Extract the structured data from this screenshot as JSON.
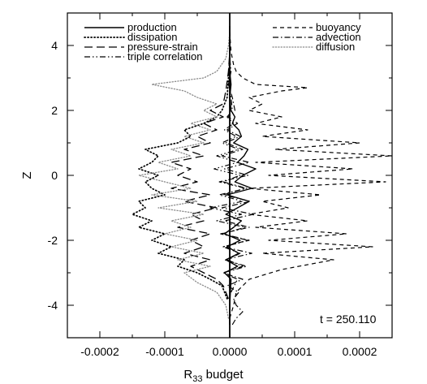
{
  "chart_data": {
    "type": "line",
    "title": "",
    "xlabel": "R",
    "xlabel_sub": "33",
    "xlabel_tail": " budget",
    "ylabel": "Z",
    "xlim": [
      -0.00025,
      0.00025
    ],
    "ylim": [
      -5,
      5
    ],
    "x_ticks": [
      {
        "value": -0.0002,
        "label": "-0.0002"
      },
      {
        "value": -0.0001,
        "label": "-0.0001"
      },
      {
        "value": 0.0,
        "label": "0.0000"
      },
      {
        "value": 0.0001,
        "label": "0.0001"
      },
      {
        "value": 0.0002,
        "label": "0.0002"
      }
    ],
    "y_ticks": [
      {
        "value": -4,
        "label": "-4"
      },
      {
        "value": -2,
        "label": "-2"
      },
      {
        "value": 0,
        "label": "0"
      },
      {
        "value": 2,
        "label": "2"
      },
      {
        "value": 4,
        "label": "4"
      }
    ],
    "grid": false,
    "legend_position": "top",
    "annotation": "t = 250.110",
    "legend_left": [
      {
        "name": "production",
        "dash": "solid"
      },
      {
        "name": "dissipation",
        "dash": "dotted"
      },
      {
        "name": "pressure-strain",
        "dash": "longdash"
      },
      {
        "name": "triple correlation",
        "dash": "dashdotdot"
      }
    ],
    "legend_right": [
      {
        "name": "buoyancy",
        "dash": "dashed"
      },
      {
        "name": "advection",
        "dash": "dashdot"
      },
      {
        "name": "diffusion",
        "dash": "lightdotted"
      }
    ],
    "series": [
      {
        "name": "production",
        "dash": "solid",
        "z": [
          -4.6,
          -4.0,
          -3.2,
          -3.0,
          -2.8,
          -2.6,
          -2.4,
          -2.2,
          -2.0,
          -1.8,
          -1.6,
          -1.4,
          -1.2,
          -1.0,
          -0.8,
          -0.6,
          -0.4,
          -0.2,
          0.0,
          0.2,
          0.4,
          0.6,
          0.8,
          1.0,
          1.2,
          1.4,
          1.6,
          1.8,
          2.0,
          2.4,
          2.8,
          3.2,
          3.6,
          4.0,
          4.6
        ],
        "x": [
          0.0,
          0.0,
          2e-06,
          -8e-06,
          1.2e-05,
          -6e-06,
          1.4e-05,
          -4e-06,
          1.6e-05,
          -8e-06,
          6e-06,
          1.8e-05,
          -6e-06,
          1.2e-05,
          3e-05,
          -4e-06,
          3.4e-05,
          8e-06,
          2e-05,
          4e-05,
          1.2e-05,
          2.2e-05,
          2.8e-05,
          6e-06,
          1.8e-05,
          1.4e-05,
          4e-06,
          8e-06,
          2e-06,
          0.0,
          2e-06,
          0.0,
          0.0,
          0.0,
          0.0
        ]
      },
      {
        "name": "dissipation",
        "dash": "dotted",
        "z": [
          -3.8,
          -3.4,
          -3.2,
          -3.0,
          -2.8,
          -2.6,
          -2.4,
          -2.2,
          -2.0,
          -1.8,
          -1.6,
          -1.4,
          -1.2,
          -1.0,
          -0.8,
          -0.6,
          -0.4,
          -0.2,
          0.0,
          0.2,
          0.4,
          0.6,
          0.8,
          1.0,
          1.2,
          1.4,
          1.6,
          1.8,
          2.0,
          2.4,
          3.0,
          3.6
        ],
        "x": [
          -4e-06,
          -1.2e-05,
          -3e-05,
          -5e-05,
          -8e-05,
          -7e-05,
          -0.00011,
          -9e-05,
          -0.00012,
          -0.0001,
          -0.00014,
          -0.00012,
          -0.00015,
          -0.00013,
          -0.00014,
          -0.0001,
          -0.00012,
          -0.00013,
          -0.00011,
          -0.00014,
          -0.00012,
          -0.00011,
          -0.00013,
          -8e-05,
          -6e-05,
          -7e-05,
          -4e-05,
          -2e-05,
          -1.2e-05,
          -4e-06,
          -2e-06,
          0.0
        ]
      },
      {
        "name": "pressure-strain",
        "dash": "longdash",
        "z": [
          -3.8,
          -3.4,
          -3.2,
          -3.0,
          -2.8,
          -2.6,
          -2.4,
          -2.2,
          -2.0,
          -1.8,
          -1.6,
          -1.4,
          -1.2,
          -1.0,
          -0.8,
          -0.6,
          -0.4,
          -0.2,
          0.0,
          0.2,
          0.4,
          0.6,
          0.8,
          1.0,
          1.2,
          1.4,
          1.6,
          1.8,
          2.0,
          2.2,
          2.6,
          3.2,
          3.8
        ],
        "x": [
          -2e-06,
          -1e-05,
          -2e-05,
          -4e-05,
          -6e-05,
          -3e-05,
          -7e-05,
          -4e-05,
          -6e-05,
          -3e-05,
          -8e-05,
          -4e-05,
          -6e-05,
          -2e-05,
          -7e-05,
          -3e-05,
          -9e-05,
          -5e-05,
          -8e-05,
          -6e-05,
          -9e-05,
          -4e-05,
          -7e-05,
          -3e-05,
          -5e-05,
          -2e-05,
          -4e-05,
          -1e-05,
          -3e-05,
          -1e-05,
          -6e-06,
          -2e-06,
          0.0
        ]
      },
      {
        "name": "triple correlation",
        "dash": "dashdotdot",
        "z": [
          -3.6,
          -3.2,
          -3.0,
          -2.8,
          -2.6,
          -2.4,
          -2.2,
          -2.0,
          -1.8,
          -1.6,
          -1.4,
          -1.2,
          -1.0,
          -0.8,
          -0.6,
          -0.4,
          -0.2,
          0.0,
          0.2,
          0.4,
          0.6,
          0.8,
          1.0,
          1.2,
          1.4,
          1.6,
          1.8,
          2.0,
          2.4,
          3.0,
          3.6
        ],
        "x": [
          2e-06,
          1.2e-05,
          -1e-05,
          2e-05,
          -4e-06,
          1.6e-05,
          -1e-05,
          3e-05,
          -1.2e-05,
          2.4e-05,
          -2e-05,
          1.8e-05,
          -3e-05,
          2e-05,
          -1.6e-05,
          2.6e-05,
          -1e-05,
          1.6e-05,
          -2.4e-05,
          1.2e-05,
          -2e-05,
          1.4e-05,
          -1.2e-05,
          1e-05,
          -8e-06,
          6e-06,
          -4e-06,
          4e-06,
          2e-06,
          -2e-06,
          0.0
        ]
      },
      {
        "name": "buoyancy",
        "dash": "dashed",
        "z": [
          -4.4,
          -4.0,
          -3.6,
          -3.2,
          -2.9,
          -2.6,
          -2.4,
          -2.2,
          -2.0,
          -1.8,
          -1.6,
          -1.4,
          -1.2,
          -1.0,
          -0.8,
          -0.6,
          -0.4,
          -0.2,
          0.0,
          0.2,
          0.4,
          0.6,
          0.8,
          1.0,
          1.2,
          1.4,
          1.6,
          1.8,
          2.0,
          2.2,
          2.4,
          2.6,
          2.7,
          2.8,
          3.0,
          3.2,
          3.4,
          3.8,
          4.4
        ],
        "x": [
          0.0,
          6e-06,
          1e-05,
          3e-05,
          8e-05,
          0.00016,
          5e-05,
          0.00022,
          6e-05,
          0.00018,
          4e-05,
          0.00012,
          3e-05,
          9e-05,
          5e-05,
          0.00014,
          3e-05,
          0.00024,
          6e-05,
          0.00019,
          4e-05,
          0.00025,
          7e-05,
          0.0002,
          5e-05,
          0.00012,
          4e-05,
          8e-05,
          3e-05,
          5e-05,
          3e-05,
          8e-05,
          0.00012,
          4e-05,
          2e-05,
          1e-05,
          6e-06,
          2e-06,
          0.0
        ]
      },
      {
        "name": "advection",
        "dash": "dashdot",
        "z": [
          -4.6,
          -4.4,
          -4.2,
          -4.0,
          -3.8,
          -3.6,
          -3.4,
          -3.2,
          -3.0,
          -2.8,
          -2.6,
          -2.4,
          -2.2,
          -2.0,
          -1.8,
          -1.6,
          -1.4,
          -1.2,
          -1.0,
          -0.8,
          -0.6,
          -0.4,
          -0.2,
          0.0,
          0.2,
          0.4,
          0.6,
          0.8,
          1.0,
          1.2,
          1.4,
          1.6,
          1.8,
          2.0,
          2.4,
          2.8,
          3.2,
          3.6,
          4.2
        ],
        "x": [
          4e-06,
          1e-05,
          2e-05,
          1e-05,
          6e-06,
          1.4e-05,
          -4e-06,
          2e-05,
          -1e-05,
          2.6e-05,
          -8e-06,
          3.4e-05,
          -1e-05,
          2.8e-05,
          -1.4e-05,
          3e-05,
          -8e-06,
          3.6e-05,
          -1.2e-05,
          3.2e-05,
          -1e-05,
          2.4e-05,
          -1.6e-05,
          2.8e-05,
          -8e-06,
          3e-05,
          -1.2e-05,
          2e-05,
          -6e-06,
          1.6e-05,
          -4e-06,
          1.2e-05,
          -2e-06,
          8e-06,
          4e-06,
          -2e-06,
          2e-06,
          0.0,
          0.0
        ]
      },
      {
        "name": "diffusion",
        "dash": "lightdotted",
        "z": [
          -4.4,
          -4.0,
          -3.6,
          -3.3,
          -3.0,
          -2.8,
          -2.6,
          -2.4,
          -2.2,
          -2.0,
          -1.8,
          -1.6,
          -1.4,
          -1.2,
          -1.0,
          -0.8,
          -0.6,
          -0.4,
          -0.2,
          0.0,
          0.2,
          0.4,
          0.6,
          0.8,
          1.0,
          1.2,
          1.4,
          1.6,
          1.8,
          2.0,
          2.2,
          2.4,
          2.6,
          2.8,
          3.0,
          3.2,
          3.6,
          4.0,
          4.4
        ],
        "x": [
          -2e-06,
          -6e-06,
          -2e-05,
          -5e-05,
          -7e-05,
          -3e-05,
          -8e-05,
          -4e-05,
          -9e-05,
          -5e-05,
          -0.0001,
          -6e-05,
          -9e-05,
          -4e-05,
          -0.00011,
          -5e-05,
          -0.00012,
          -6e-05,
          -0.0001,
          -0.00014,
          -8e-05,
          -0.00011,
          -6e-05,
          -9e-05,
          -4e-05,
          -7e-05,
          -3e-05,
          -6e-05,
          -2e-05,
          -4e-05,
          -2e-05,
          -5e-05,
          -7e-05,
          -0.00012,
          -4e-05,
          -2e-05,
          -6e-06,
          -2e-06,
          0.0
        ]
      }
    ]
  }
}
